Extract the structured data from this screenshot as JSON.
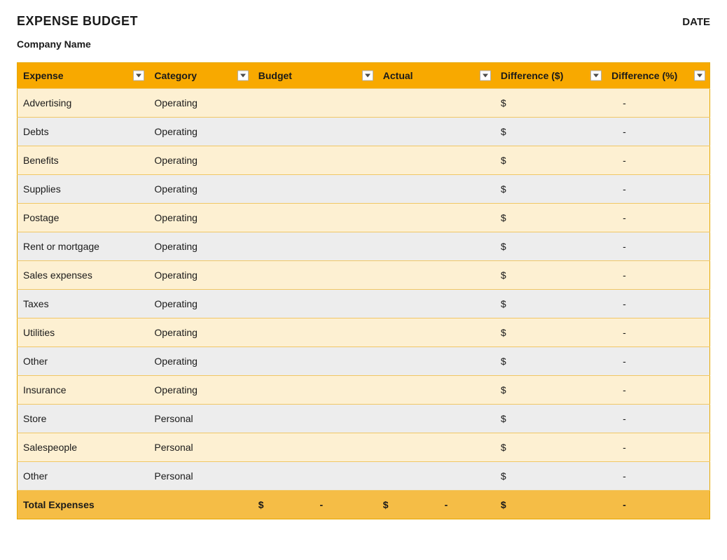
{
  "header": {
    "title": "EXPENSE BUDGET",
    "date_label": "DATE",
    "company_name": "Company Name"
  },
  "table": {
    "type": "table",
    "header_bg": "#f8a900",
    "row_light_bg": "#fdf0d2",
    "row_gray_bg": "#ededed",
    "total_bg": "#f5bd46",
    "border_color": "#e6a800",
    "text_color": "#1a1a1a",
    "columns": [
      {
        "key": "expense",
        "label": "Expense",
        "width_pct": 19
      },
      {
        "key": "category",
        "label": "Category",
        "width_pct": 15
      },
      {
        "key": "budget",
        "label": "Budget",
        "width_pct": 18
      },
      {
        "key": "actual",
        "label": "Actual",
        "width_pct": 17
      },
      {
        "key": "diff",
        "label": "Difference ($)",
        "width_pct": 16
      },
      {
        "key": "diffpct",
        "label": "Difference (%)",
        "width_pct": 15
      }
    ],
    "rows": [
      {
        "expense": "Advertising",
        "category": "Operating",
        "budget": "",
        "actual": "",
        "diff": "$",
        "diffpct": "-"
      },
      {
        "expense": "Debts",
        "category": "Operating",
        "budget": "",
        "actual": "",
        "diff": "$",
        "diffpct": "-"
      },
      {
        "expense": "Benefits",
        "category": "Operating",
        "budget": "",
        "actual": "",
        "diff": "$",
        "diffpct": "-"
      },
      {
        "expense": "Supplies",
        "category": "Operating",
        "budget": "",
        "actual": "",
        "diff": "$",
        "diffpct": "-"
      },
      {
        "expense": "Postage",
        "category": "Operating",
        "budget": "",
        "actual": "",
        "diff": "$",
        "diffpct": "-"
      },
      {
        "expense": "Rent or mortgage",
        "category": "Operating",
        "budget": "",
        "actual": "",
        "diff": "$",
        "diffpct": "-"
      },
      {
        "expense": "Sales expenses",
        "category": "Operating",
        "budget": "",
        "actual": "",
        "diff": "$",
        "diffpct": "-"
      },
      {
        "expense": "Taxes",
        "category": "Operating",
        "budget": "",
        "actual": "",
        "diff": "$",
        "diffpct": "-"
      },
      {
        "expense": "Utilities",
        "category": "Operating",
        "budget": "",
        "actual": "",
        "diff": "$",
        "diffpct": "-"
      },
      {
        "expense": "Other",
        "category": "Operating",
        "budget": "",
        "actual": "",
        "diff": "$",
        "diffpct": "-"
      },
      {
        "expense": "Insurance",
        "category": "Operating",
        "budget": "",
        "actual": "",
        "diff": "$",
        "diffpct": "-"
      },
      {
        "expense": "Store",
        "category": "Personal",
        "budget": "",
        "actual": "",
        "diff": "$",
        "diffpct": "-"
      },
      {
        "expense": "Salespeople",
        "category": "Personal",
        "budget": "",
        "actual": "",
        "diff": "$",
        "diffpct": "-"
      },
      {
        "expense": "Other",
        "category": "Personal",
        "budget": "",
        "actual": "",
        "diff": "$",
        "diffpct": "-"
      }
    ],
    "total": {
      "label": "Total Expenses",
      "budget_symbol": "$",
      "budget_dash": "-",
      "actual_symbol": "$",
      "actual_dash": "-",
      "diff_symbol": "$",
      "diff_dash": "-"
    }
  }
}
